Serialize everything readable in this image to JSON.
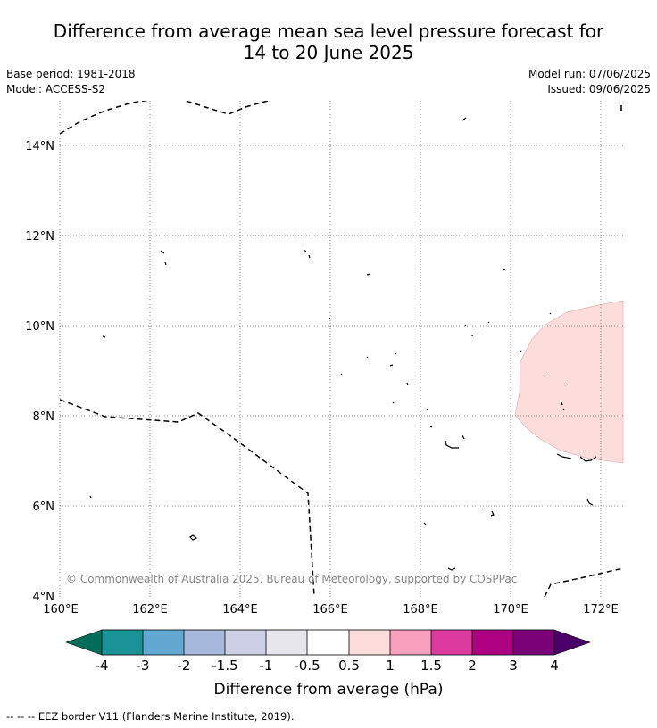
{
  "header": {
    "title_line1": "Difference from average mean sea level pressure forecast for",
    "title_line2": "14 to 20 June 2025",
    "base_period": "Base period: 1981-2018",
    "model": "Model: ACCESS-S2",
    "model_run": "Model run: 07/06/2025",
    "issued": "Issued: 09/06/2025"
  },
  "map": {
    "x_ticks": [
      "160°E",
      "162°E",
      "164°E",
      "166°E",
      "168°E",
      "170°E",
      "172°E"
    ],
    "y_ticks": [
      "14°N",
      "12°N",
      "10°N",
      "8°N",
      "6°N",
      "4°N"
    ],
    "copyright": "© Commonwealth of Australia 2025, Bureau of Meteorology, supported by COSPPac",
    "anomaly_fill_color": "#fddcdc",
    "anomaly_value_range": "0.5 to 1 hPa"
  },
  "colorbar": {
    "label": "Difference from average (hPa)",
    "tick_labels": [
      "-4",
      "-3",
      "-2",
      "-1.5",
      "-1",
      "-0.5",
      "0.5",
      "1",
      "1.5",
      "2",
      "3",
      "4"
    ],
    "low_extend_color": "#006d5b",
    "high_extend_color": "#4a006a",
    "colors": [
      "#1b9396",
      "#63a8d3",
      "#a6b9dc",
      "#cdcfe6",
      "#e8e6ed",
      "#ffffff",
      "#fddcdc",
      "#f9a0bf",
      "#dd3aa0",
      "#ae0181",
      "#7a0177"
    ]
  },
  "legend": {
    "eez_border": "--  --  -- EEZ border V11 (Flanders Marine Institute, 2019)."
  }
}
